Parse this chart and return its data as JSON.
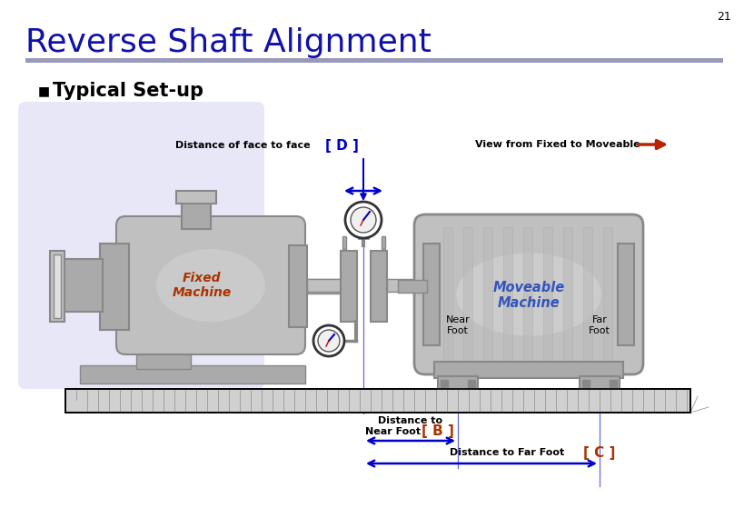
{
  "title": "Reverse Shaft Alignment",
  "slide_number": "21",
  "bullet_title": "Typical Set-up",
  "title_color": "#1111AA",
  "title_fontsize": 26,
  "bullet_fontsize": 15,
  "bg_color": "#FFFFFF",
  "separator_color": "#9999BB",
  "lavender_bg": "#DDDDF5",
  "label_D_text": "Distance of face to face",
  "label_D_bracket": "[ D ]",
  "label_view_text": "View from Fixed to Moveable",
  "label_B_top": "Distance to",
  "label_B_bot": "Near Foot",
  "label_B_bracket": "[ B ]",
  "label_C_text": "Distance to Far Foot",
  "label_C_bracket": "[ C ]",
  "fixed_label": "Fixed\nMachine",
  "moveable_label": "Moveable\nMachine",
  "near_foot_label": "Near\nFoot",
  "far_foot_label": "Far\nFoot",
  "fixed_color": "#AA3300",
  "moveable_color": "#3355BB",
  "arrow_color": "#0000CC",
  "bracket_color": "#AA3300",
  "view_arrow_color": "#BB2200",
  "gray1": "#C0C0C0",
  "gray2": "#AAAAAA",
  "gray3": "#D5D5D5",
  "gray_dark": "#888888",
  "gray_light": "#E0E0E0"
}
